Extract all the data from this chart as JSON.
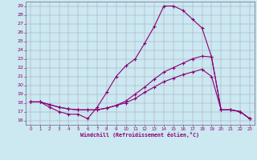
{
  "xlabel": "Windchill (Refroidissement éolien,°C)",
  "background_color": "#cce8f0",
  "line_color": "#880077",
  "grid_color": "#9999bb",
  "spine_color": "#666688",
  "xlim": [
    -0.5,
    23.5
  ],
  "ylim": [
    15.5,
    29.5
  ],
  "xticks": [
    0,
    1,
    2,
    3,
    4,
    5,
    6,
    7,
    8,
    9,
    10,
    11,
    12,
    13,
    14,
    15,
    16,
    17,
    18,
    19,
    20,
    21,
    22,
    23
  ],
  "yticks": [
    16,
    17,
    18,
    19,
    20,
    21,
    22,
    23,
    24,
    25,
    26,
    27,
    28,
    29
  ],
  "line1_x": [
    0,
    1,
    2,
    3,
    4,
    5,
    6,
    7,
    8,
    9,
    10,
    11,
    12,
    13,
    14,
    15,
    16,
    17,
    18,
    19,
    20,
    21,
    22,
    23
  ],
  "line1_y": [
    18.1,
    18.1,
    17.5,
    17.0,
    16.7,
    16.7,
    16.2,
    17.5,
    19.2,
    21.0,
    22.2,
    23.0,
    24.8,
    26.7,
    29.0,
    29.0,
    28.5,
    27.5,
    26.5,
    23.2,
    17.2,
    17.2,
    17.0,
    16.2
  ],
  "line2_x": [
    0,
    1,
    2,
    3,
    4,
    5,
    6,
    7,
    8,
    9,
    10,
    11,
    12,
    13,
    14,
    15,
    16,
    17,
    18,
    19,
    20,
    21,
    22,
    23
  ],
  "line2_y": [
    18.1,
    18.1,
    17.8,
    17.5,
    17.3,
    17.2,
    17.2,
    17.2,
    17.4,
    17.7,
    18.2,
    19.0,
    19.8,
    20.7,
    21.5,
    22.0,
    22.5,
    23.0,
    23.3,
    23.2,
    17.2,
    17.2,
    17.0,
    16.2
  ],
  "line3_x": [
    0,
    1,
    2,
    3,
    4,
    5,
    6,
    7,
    8,
    9,
    10,
    11,
    12,
    13,
    14,
    15,
    16,
    17,
    18,
    19,
    20,
    21,
    22,
    23
  ],
  "line3_y": [
    18.1,
    18.1,
    17.8,
    17.5,
    17.3,
    17.2,
    17.2,
    17.2,
    17.4,
    17.7,
    18.0,
    18.5,
    19.2,
    19.8,
    20.4,
    20.8,
    21.2,
    21.5,
    21.8,
    21.0,
    17.2,
    17.2,
    17.0,
    16.2
  ]
}
